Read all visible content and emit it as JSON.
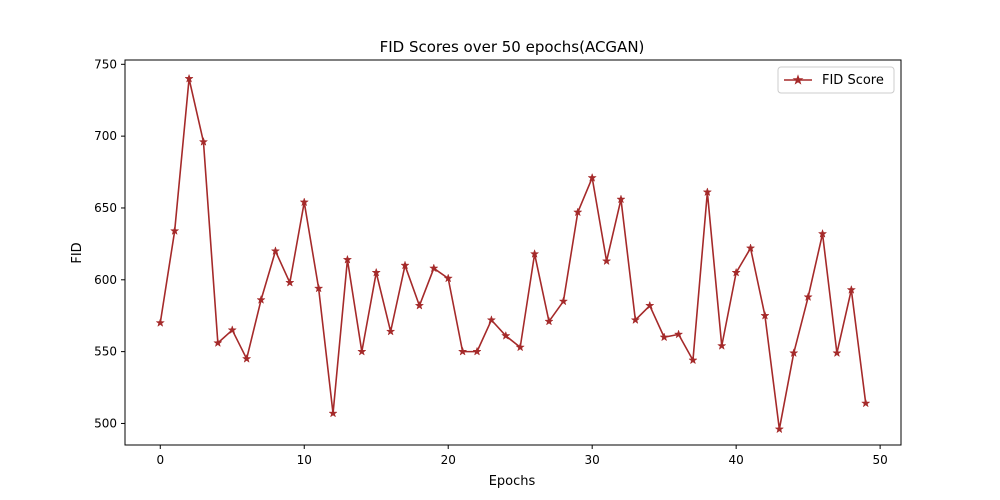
{
  "chart_data": {
    "type": "line",
    "title": "FID Scores over 50 epochs(ACGAN)",
    "xlabel": "Epochs",
    "ylabel": "FID",
    "xlim": [
      -2.45,
      51.45
    ],
    "ylim": [
      485,
      753
    ],
    "xticks": [
      0,
      10,
      20,
      30,
      40,
      50
    ],
    "yticks": [
      500,
      550,
      600,
      650,
      700,
      750
    ],
    "grid": false,
    "legend": "top-right",
    "series": [
      {
        "name": "FID Score",
        "color": "#a52a2a",
        "marker": "star",
        "x": [
          0,
          1,
          2,
          3,
          4,
          5,
          6,
          7,
          8,
          9,
          10,
          11,
          12,
          13,
          14,
          15,
          16,
          17,
          18,
          19,
          20,
          21,
          22,
          23,
          24,
          25,
          26,
          27,
          28,
          29,
          30,
          31,
          32,
          33,
          34,
          35,
          36,
          37,
          38,
          39,
          40,
          41,
          42,
          43,
          44,
          45,
          46,
          47,
          48,
          49
        ],
        "y": [
          570,
          634,
          740,
          696,
          556,
          565,
          545,
          586,
          620,
          598,
          654,
          594,
          507,
          614,
          550,
          605,
          564,
          610,
          582,
          608,
          601,
          550,
          550,
          572,
          561,
          553,
          618,
          571,
          585,
          647,
          671,
          613,
          656,
          572,
          582,
          560,
          562,
          544,
          661,
          554,
          605,
          622,
          575,
          496,
          549,
          588,
          632,
          549,
          593,
          514
        ]
      }
    ]
  }
}
